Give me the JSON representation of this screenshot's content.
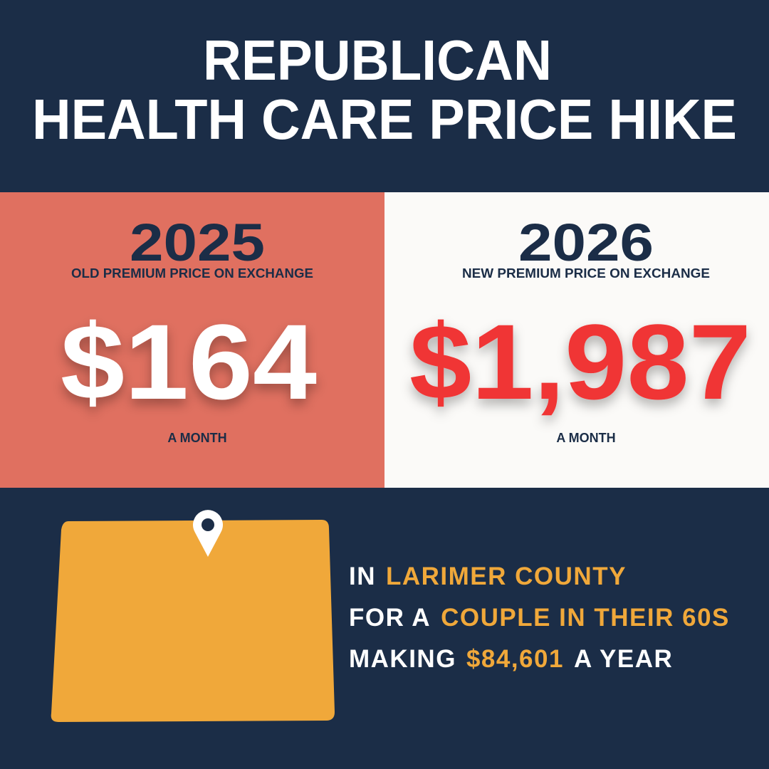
{
  "header": {
    "title_lines": [
      "REPUBLICAN",
      "HEALTH CARE PRICE HIKE"
    ]
  },
  "panels": [
    {
      "year": "2025",
      "caption": "OLD PREMIUM PRICE ON EXCHANGE",
      "price": "$164",
      "period": "A MONTH"
    },
    {
      "year": "2026",
      "caption": "NEW PREMIUM PRICE ON EXCHANGE",
      "price": "$1,987",
      "period": "A MONTH"
    }
  ],
  "details": {
    "lines": [
      [
        "IN",
        "LARIMER COUNTY"
      ],
      [
        "FOR A",
        "COUPLE IN THEIR 60S"
      ],
      [
        "MAKING",
        "$84,601",
        "A YEAR"
      ]
    ]
  }
}
